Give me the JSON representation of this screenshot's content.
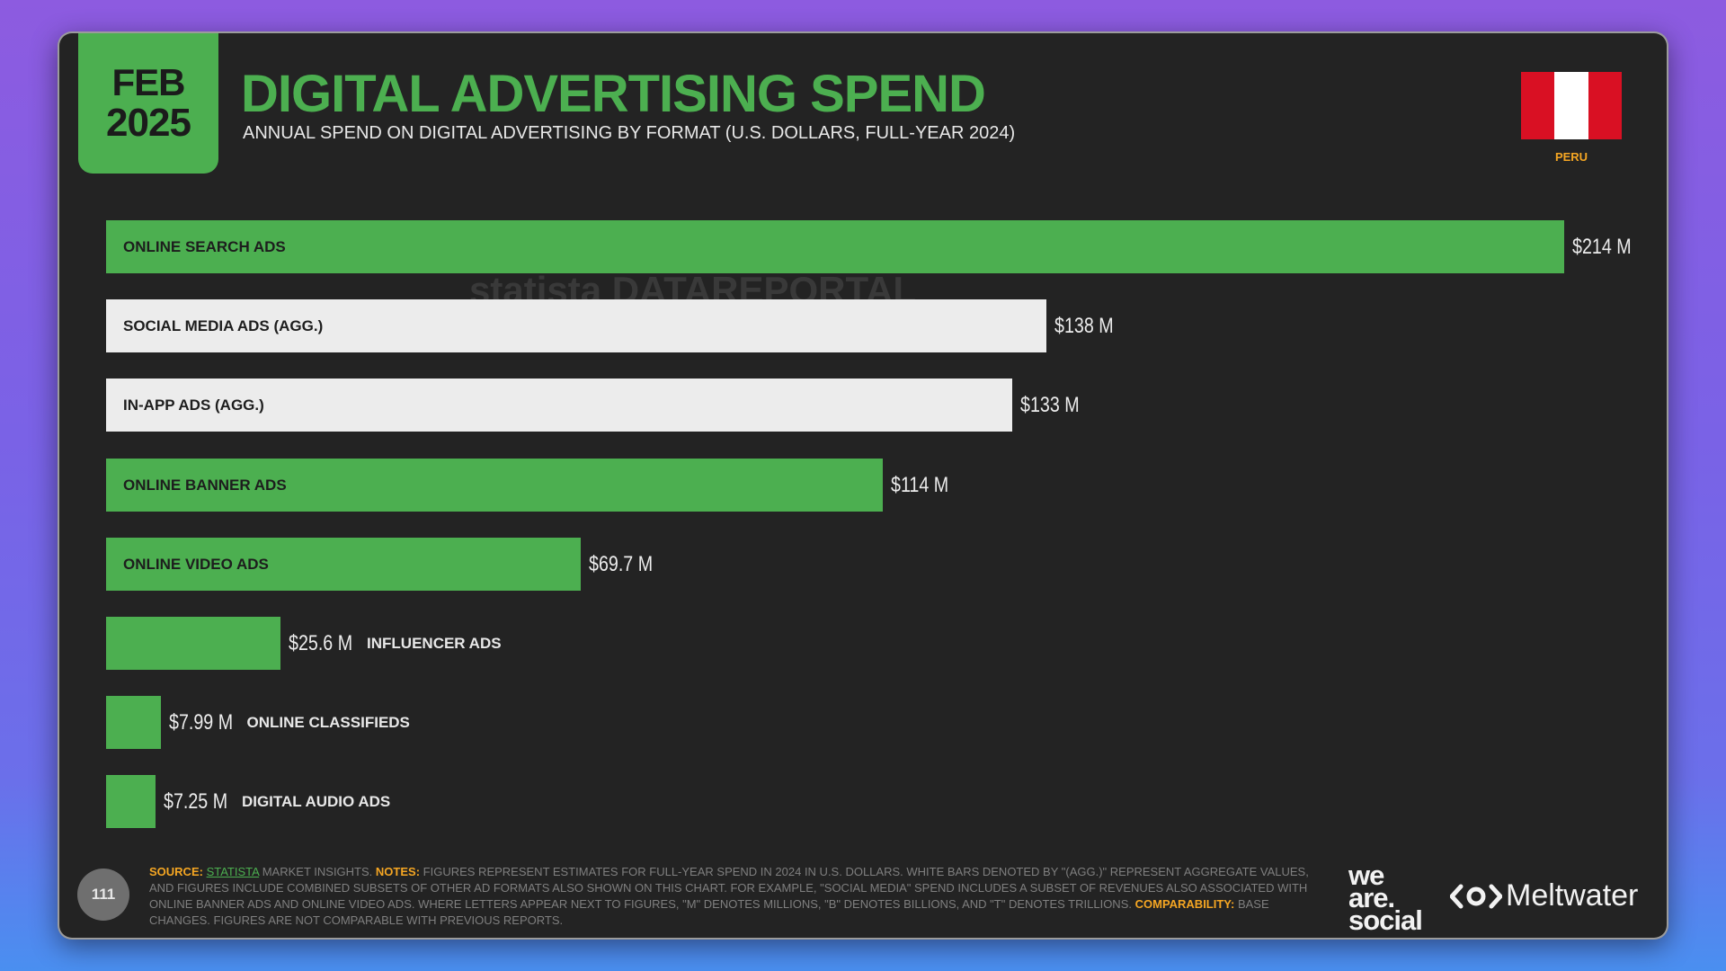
{
  "header": {
    "date_month": "FEB",
    "date_year": "2025",
    "title": "DIGITAL ADVERTISING SPEND",
    "subtitle": "ANNUAL SPEND ON DIGITAL ADVERTISING BY FORMAT (U.S. DOLLARS, FULL-YEAR 2024)",
    "country": "PERU",
    "flag_colors": [
      "#d91023",
      "#ffffff",
      "#d91023"
    ]
  },
  "watermark": "statista  DATAREPORTAL",
  "colors": {
    "green": "#4caf50",
    "white_bar": "#ececec",
    "background": "#232323",
    "accent_orange": "#f5a623"
  },
  "chart_data": {
    "type": "bar",
    "orientation": "horizontal",
    "unit": "USD millions",
    "categories": [
      "ONLINE SEARCH ADS",
      "SOCIAL MEDIA ADS (AGG.)",
      "IN-APP ADS (AGG.)",
      "ONLINE BANNER ADS",
      "ONLINE VIDEO ADS",
      "INFLUENCER ADS",
      "ONLINE CLASSIFIEDS",
      "DIGITAL AUDIO ADS"
    ],
    "values": [
      214,
      138,
      133,
      114,
      69.7,
      25.6,
      7.99,
      7.25
    ],
    "value_labels": [
      "$214 M",
      "$138 M",
      "$133 M",
      "$114 M",
      "$69.7 M",
      "$25.6 M",
      "$7.99 M",
      "$7.25 M"
    ],
    "bar_colors": [
      "#4caf50",
      "#ececec",
      "#ececec",
      "#4caf50",
      "#4caf50",
      "#4caf50",
      "#4caf50",
      "#4caf50"
    ],
    "xlim": [
      0,
      214
    ]
  },
  "footer": {
    "page_number": "111",
    "source_label": "SOURCE:",
    "source_link": "STATISTA",
    "source_text": "MARKET INSIGHTS.",
    "notes_label": "NOTES:",
    "notes_text": "FIGURES REPRESENT ESTIMATES FOR FULL-YEAR SPEND IN 2024 IN U.S. DOLLARS. WHITE BARS DENOTED BY \"(AGG.)\" REPRESENT AGGREGATE VALUES, AND FIGURES INCLUDE COMBINED SUBSETS OF OTHER AD FORMATS ALSO SHOWN ON THIS CHART. FOR EXAMPLE, \"SOCIAL MEDIA\" SPEND INCLUDES A SUBSET OF REVENUES ALSO ASSOCIATED WITH ONLINE BANNER ADS AND ONLINE VIDEO ADS. WHERE LETTERS APPEAR NEXT TO FIGURES, \"M\" DENOTES MILLIONS, \"B\" DENOTES BILLIONS, AND \"T\" DENOTES TRILLIONS.",
    "comparability_label": "COMPARABILITY:",
    "comparability_text": "BASE CHANGES. FIGURES ARE NOT COMPARABLE WITH PREVIOUS REPORTS.",
    "logo_line1": "we",
    "logo_line2": "are.",
    "logo_line3": "social",
    "logo_meltwater": "Meltwater"
  }
}
